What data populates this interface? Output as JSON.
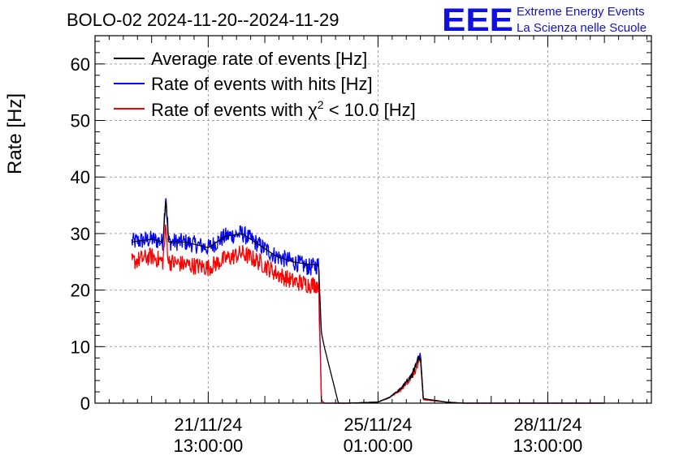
{
  "chart_data": {
    "type": "line",
    "title": "BOLO-02 2024-11-20--2024-11-29",
    "ylabel": "Rate [Hz]",
    "xlabel": "",
    "ylim": [
      0,
      65
    ],
    "yticks": [
      0,
      10,
      20,
      30,
      40,
      50,
      60
    ],
    "xrange_days": [
      0.0,
      9.83
    ],
    "xticks": [
      {
        "day": 2.0,
        "label_line1": "21/11/24",
        "label_line2": "13:00:00"
      },
      {
        "day": 5.0,
        "label_line1": "25/11/24",
        "label_line2": "01:00:00"
      },
      {
        "day": 8.0,
        "label_line1": "28/11/24",
        "label_line2": "13:00:00"
      }
    ],
    "grid": true,
    "legend_position": "top-left",
    "legend": [
      {
        "label": "Average rate of events [Hz]",
        "color": "#000000"
      },
      {
        "label_pre": "Rate of events with ",
        "label_chi": "χ",
        "label_sup": "2",
        "label_post": " < 10.0 [Hz]",
        "color": "#ff0000"
      },
      {
        "label": "Rate of events with hits [Hz]",
        "color": "#0000ff"
      }
    ],
    "series": [
      {
        "name": "Average rate of events [Hz]",
        "color": "#000000",
        "x": [
          0.65,
          1.0,
          1.2,
          1.25,
          1.3,
          1.6,
          2.0,
          2.3,
          2.6,
          2.9,
          3.2,
          3.5,
          3.8,
          3.95,
          4.0,
          4.05,
          4.3,
          4.5,
          5.0,
          5.2,
          5.4,
          5.6,
          5.7,
          5.75,
          5.8,
          6.0,
          6.2,
          6.5,
          8.0,
          9.0
        ],
        "y": [
          28.5,
          29.0,
          28.5,
          36.0,
          28.5,
          28.5,
          27.5,
          29.5,
          30.0,
          28.0,
          26.0,
          25.0,
          24.5,
          24.5,
          12.5,
          10.0,
          0.0,
          0.0,
          0.2,
          1.0,
          2.5,
          5.0,
          7.5,
          8.5,
          0.8,
          0.5,
          0.2,
          0.0,
          0.0,
          0.0
        ]
      },
      {
        "name": "Rate of events with hits [Hz]",
        "color": "#0000ff",
        "x": [
          0.65,
          1.0,
          1.2,
          1.25,
          1.3,
          1.6,
          2.0,
          2.3,
          2.6,
          2.9,
          3.2,
          3.5,
          3.8,
          3.95,
          4.0,
          4.05,
          4.3,
          4.5,
          5.0,
          5.2,
          5.4,
          5.6,
          5.7,
          5.75,
          5.8,
          6.0,
          6.2,
          6.5,
          8.0,
          9.0
        ],
        "y": [
          28.5,
          29.0,
          28.5,
          37.5,
          28.5,
          28.5,
          27.5,
          29.5,
          30.0,
          28.0,
          26.0,
          25.0,
          24.0,
          24.5,
          0.5,
          0.0,
          0.0,
          0.0,
          0.2,
          1.0,
          2.5,
          5.0,
          7.5,
          8.5,
          0.8,
          0.5,
          0.2,
          0.0,
          0.0,
          0.0
        ]
      },
      {
        "name": "Rate of events with chi2 < 10.0 [Hz]",
        "color": "#ff0000",
        "x": [
          0.65,
          1.0,
          1.2,
          1.25,
          1.3,
          1.6,
          2.0,
          2.3,
          2.6,
          2.9,
          3.2,
          3.5,
          3.8,
          3.95,
          4.0,
          4.05,
          4.3,
          4.5,
          5.0,
          5.2,
          5.4,
          5.6,
          5.7,
          5.75,
          5.8,
          6.0,
          6.2,
          6.5,
          8.0,
          9.0
        ],
        "y": [
          25.0,
          26.0,
          25.0,
          31.0,
          25.0,
          24.5,
          24.0,
          25.5,
          26.5,
          25.0,
          23.0,
          21.5,
          21.0,
          21.0,
          0.5,
          0.0,
          0.0,
          0.0,
          0.2,
          1.0,
          2.3,
          4.5,
          6.5,
          7.5,
          0.6,
          0.4,
          0.2,
          0.0,
          0.0,
          0.0
        ]
      }
    ]
  },
  "logo": {
    "letters": "EEE",
    "line1": "Extreme Energy Events",
    "line2": "La Scienza nelle Scuole",
    "color": "#1010e0"
  }
}
